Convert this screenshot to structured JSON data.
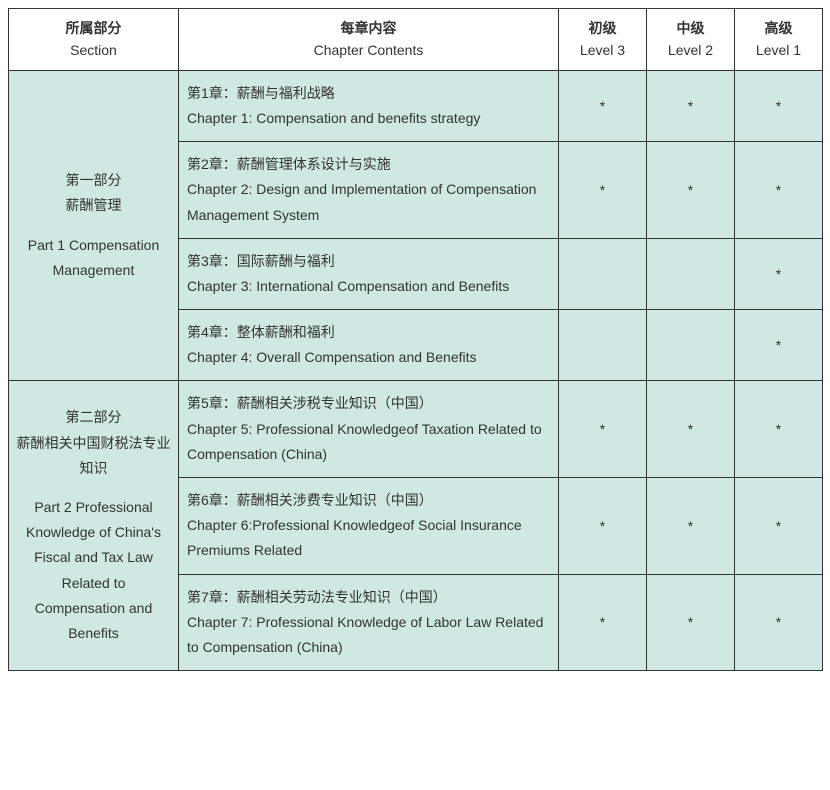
{
  "table": {
    "background_color": "#cfe8e4",
    "border_color": "#333333",
    "mark": "*",
    "headers": {
      "section": {
        "cn": "所属部分",
        "en": "Section"
      },
      "chapter": {
        "cn": "每章内容",
        "en": "Chapter Contents"
      },
      "level3": {
        "cn": "初级",
        "en": "Level 3"
      },
      "level2": {
        "cn": "中级",
        "en": "Level 2"
      },
      "level1": {
        "cn": "高级",
        "en": "Level 1"
      }
    },
    "sections": [
      {
        "title_cn_line1": "第一部分",
        "title_cn_line2": "薪酬管理",
        "title_en": "Part 1 Compensation Management",
        "rowcount": 4,
        "chapters": [
          {
            "cn": "第1章：薪酬与福利战略",
            "en": "Chapter 1: Compensation and benefits strategy",
            "l3": "*",
            "l2": "*",
            "l1": "*"
          },
          {
            "cn": "第2章：薪酬管理体系设计与实施",
            "en": "Chapter 2: Design and Implementation of Compensation Management System",
            "l3": "*",
            "l2": "*",
            "l1": "*"
          },
          {
            "cn": "第3章：国际薪酬与福利",
            "en": "Chapter 3: International Compensation and Benefits",
            "l3": "",
            "l2": "",
            "l1": "*"
          },
          {
            "cn": "第4章：整体薪酬和福利",
            "en": "Chapter 4: Overall Compensation and Benefits",
            "l3": "",
            "l2": "",
            "l1": "*"
          }
        ]
      },
      {
        "title_cn_line1": "第二部分",
        "title_cn_line2": "薪酬相关中国财税法专业知识",
        "title_en": "Part 2 Professional Knowledge of China's Fiscal and Tax Law Related to Compensation and Benefits",
        "rowcount": 3,
        "chapters": [
          {
            "cn": "第5章：薪酬相关涉税专业知识（中国）",
            "en": "Chapter 5: Professional Knowledgeof Taxation Related to Compensation (China)",
            "l3": "*",
            "l2": "*",
            "l1": "*"
          },
          {
            "cn": "第6章：薪酬相关涉费专业知识（中国）",
            "en": "Chapter 6:Professional Knowledgeof Social Insurance Premiums Related",
            "l3": "*",
            "l2": "*",
            "l1": "*"
          },
          {
            "cn": "第7章：薪酬相关劳动法专业知识（中国）",
            "en": "Chapter 7: Professional Knowledge of Labor Law Related to Compensation (China)",
            "l3": "*",
            "l2": "*",
            "l1": "*"
          }
        ]
      }
    ]
  }
}
